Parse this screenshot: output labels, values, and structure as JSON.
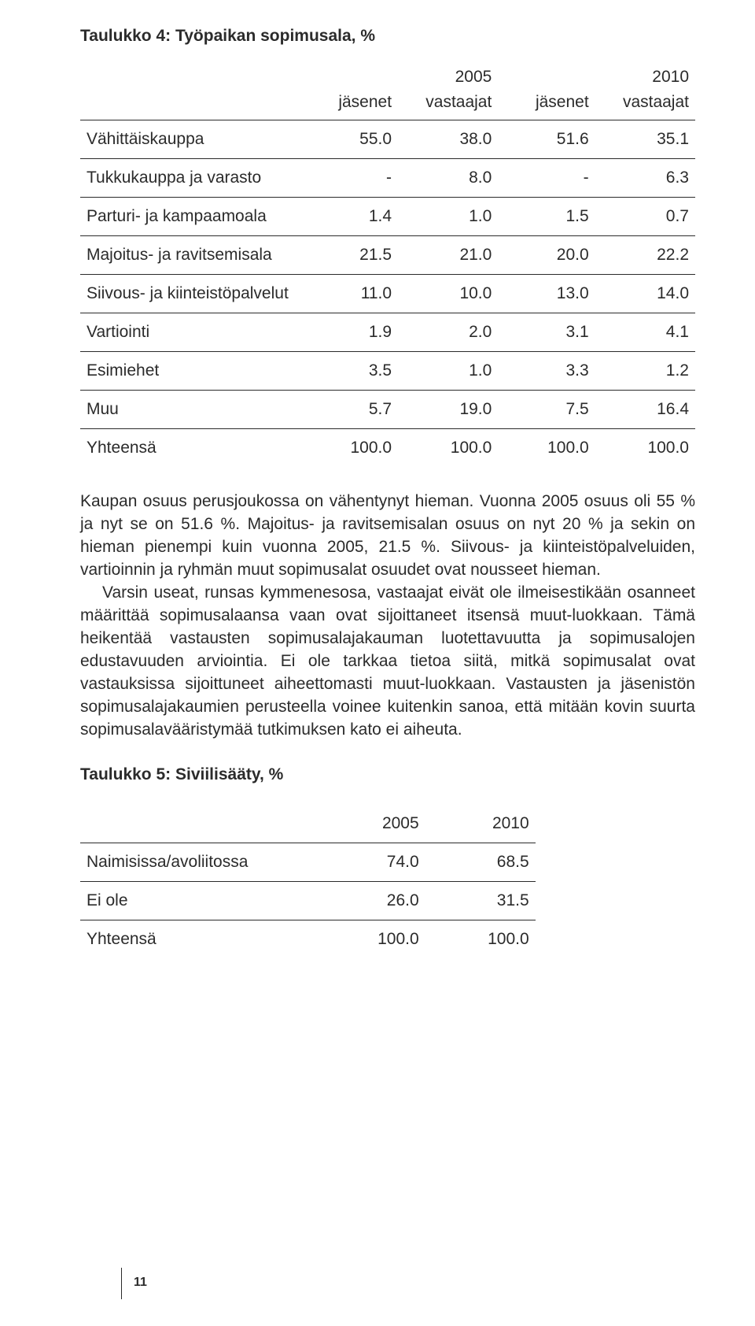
{
  "colors": {
    "text": "#2b2b2b",
    "background": "#ffffff",
    "rule": "#2b2b2b"
  },
  "typography": {
    "body_font": "Segoe UI / Helvetica Neue / Arial, sans-serif",
    "body_fontsize_pt": 16,
    "title_weight": 600,
    "line_height": 1.38
  },
  "table4": {
    "title_bold": "Taulukko 4:",
    "title_rest": " Työpaikan sopimusala, %",
    "years": [
      "2005",
      "2010"
    ],
    "subheads": [
      "jäsenet",
      "vastaajat",
      "jäsenet",
      "vastaajat"
    ],
    "rows": [
      {
        "label": "Vähittäiskauppa",
        "v": [
          "55.0",
          "38.0",
          "51.6",
          "35.1"
        ]
      },
      {
        "label": "Tukkukauppa ja varasto",
        "v": [
          "-",
          "8.0",
          "-",
          "6.3"
        ]
      },
      {
        "label": "Parturi- ja kampaamoala",
        "v": [
          "1.4",
          "1.0",
          "1.5",
          "0.7"
        ]
      },
      {
        "label": "Majoitus- ja ravitsemisala",
        "v": [
          "21.5",
          "21.0",
          "20.0",
          "22.2"
        ]
      },
      {
        "label": "Siivous- ja kiinteistöpalvelut",
        "v": [
          "11.0",
          "10.0",
          "13.0",
          "14.0"
        ]
      },
      {
        "label": "Vartiointi",
        "v": [
          "1.9",
          "2.0",
          "3.1",
          "4.1"
        ]
      },
      {
        "label": "Esimiehet",
        "v": [
          "3.5",
          "1.0",
          "3.3",
          "1.2"
        ]
      },
      {
        "label": "Muu",
        "v": [
          "5.7",
          "19.0",
          "7.5",
          "16.4"
        ]
      }
    ],
    "total": {
      "label": "Yhteensä",
      "v": [
        "100.0",
        "100.0",
        "100.0",
        "100.0"
      ]
    }
  },
  "paragraphs": {
    "p1": "Kaupan osuus perusjoukossa on vähentynyt hieman. Vuonna 2005 osuus oli 55 % ja nyt se on 51.6 %. Majoitus- ja ravitsemisalan osuus on nyt 20 % ja sekin on hieman pienempi kuin vuonna 2005, 21.5 %. Siivous- ja kiinteistöpalveluiden, vartioinnin ja ryhmän muut sopimusalat osuudet ovat nousseet hieman.",
    "p2": "Varsin useat, runsas kymmenesosa, vastaajat eivät ole ilmeisestikään osanneet määrittää sopimusalaansa vaan ovat sijoittaneet itsensä muut-luokkaan. Tämä heikentää vastausten sopimusalajakauman luotettavuutta ja sopimusalojen edustavuuden arviointia. Ei ole tarkkaa tietoa siitä, mitkä sopimusalat ovat vastauksissa sijoittuneet aiheettomasti muut-luokkaan. Vastausten ja jäsenistön sopimusalajakaumien perusteella voinee kuitenkin sanoa, että mitään kovin suurta sopimusalavääristymää tutkimuksen kato ei aiheuta."
  },
  "table5": {
    "title_bold": "Taulukko 5:",
    "title_rest": " Siviilisääty, %",
    "years": [
      "2005",
      "2010"
    ],
    "rows": [
      {
        "label": "Naimisissa/avoliitossa",
        "v": [
          "74.0",
          "68.5"
        ]
      },
      {
        "label": "Ei ole",
        "v": [
          "26.0",
          "31.5"
        ]
      }
    ],
    "total": {
      "label": "Yhteensä",
      "v": [
        "100.0",
        "100.0"
      ]
    }
  },
  "page_number": "11"
}
